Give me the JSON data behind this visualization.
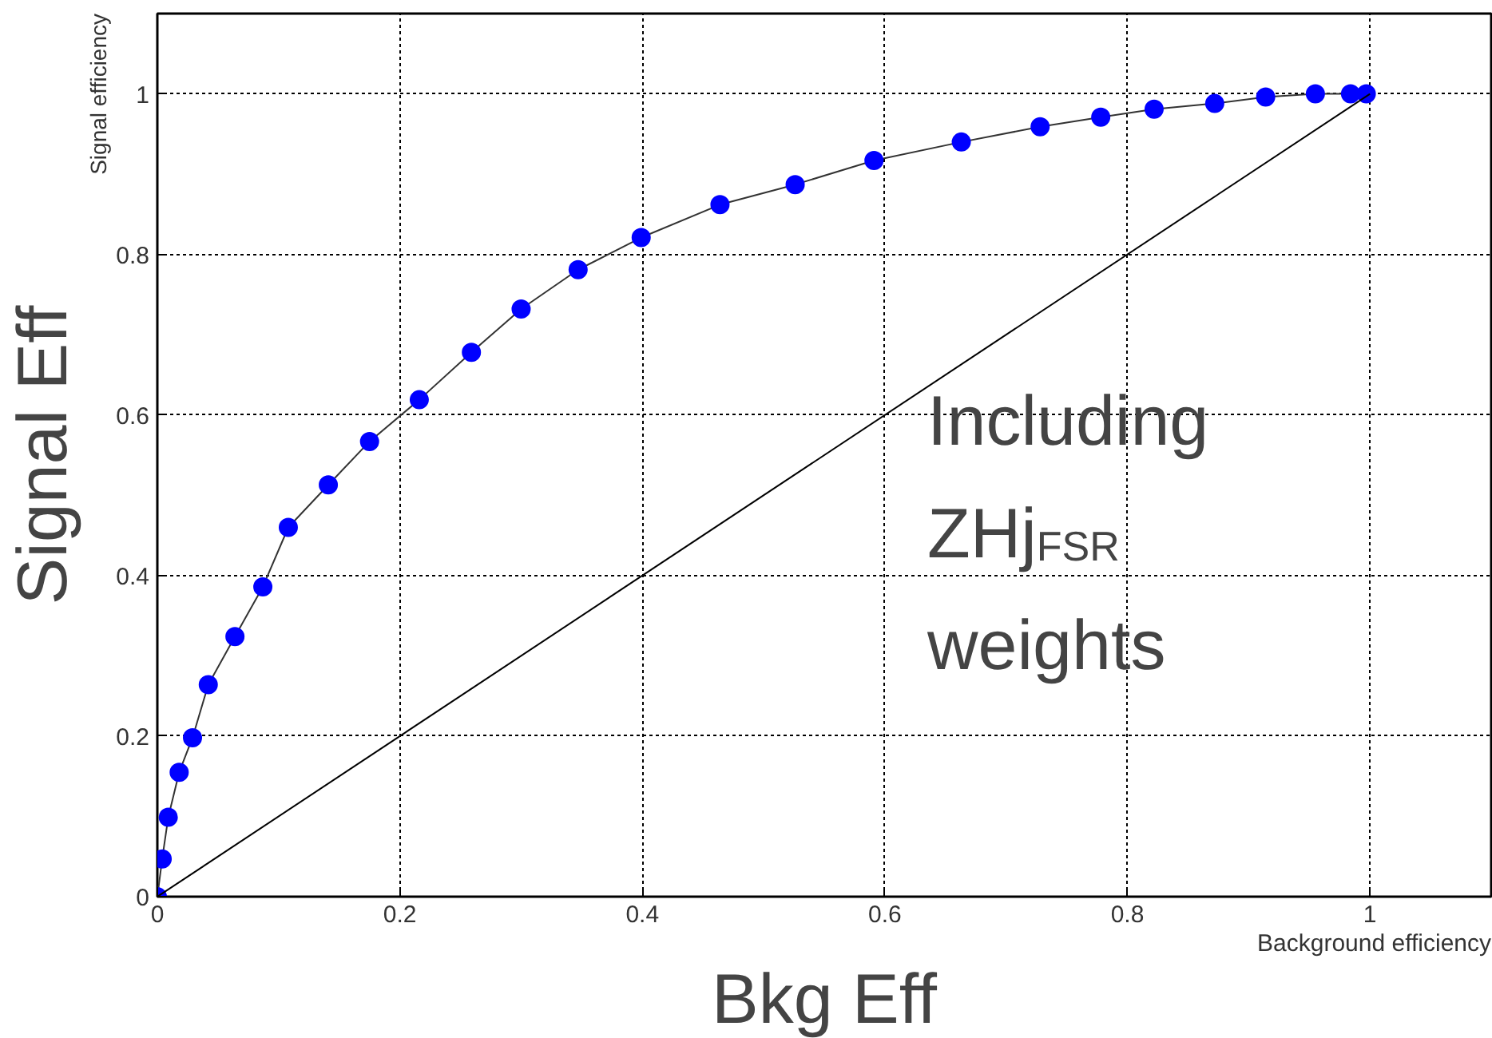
{
  "chart_data": {
    "type": "line",
    "xlabel": "Background efficiency",
    "ylabel": "Signal efficiency",
    "xlim": [
      0,
      1.1
    ],
    "ylim": [
      0,
      1.1
    ],
    "xticks": [
      0,
      0.2,
      0.4,
      0.6,
      0.8,
      1
    ],
    "yticks": [
      0,
      0.2,
      0.4,
      0.6,
      0.8,
      1
    ],
    "grid": true,
    "series": [
      {
        "color": "#0000ff",
        "marker": "circle",
        "x": [
          0,
          0.004,
          0.009,
          0.018,
          0.029,
          0.042,
          0.064,
          0.087,
          0.108,
          0.141,
          0.175,
          0.216,
          0.259,
          0.3,
          0.347,
          0.399,
          0.464,
          0.526,
          0.591,
          0.663,
          0.728,
          0.778,
          0.822,
          0.872,
          0.914,
          0.955,
          0.984,
          0.997
        ],
        "values": [
          0,
          0.047,
          0.099,
          0.155,
          0.198,
          0.264,
          0.324,
          0.386,
          0.46,
          0.513,
          0.567,
          0.619,
          0.678,
          0.732,
          0.781,
          0.821,
          0.862,
          0.887,
          0.917,
          0.94,
          0.959,
          0.971,
          0.981,
          0.988,
          0.996,
          1.0,
          1.0,
          1.0
        ]
      },
      {
        "color": "#000000",
        "marker": "none",
        "x": [
          0,
          1
        ],
        "values": [
          0,
          1
        ]
      }
    ],
    "annotations": [
      "Signal Eff",
      "Bkg Eff",
      "Including\nZHj$_{FSR}$\nweights"
    ]
  }
}
